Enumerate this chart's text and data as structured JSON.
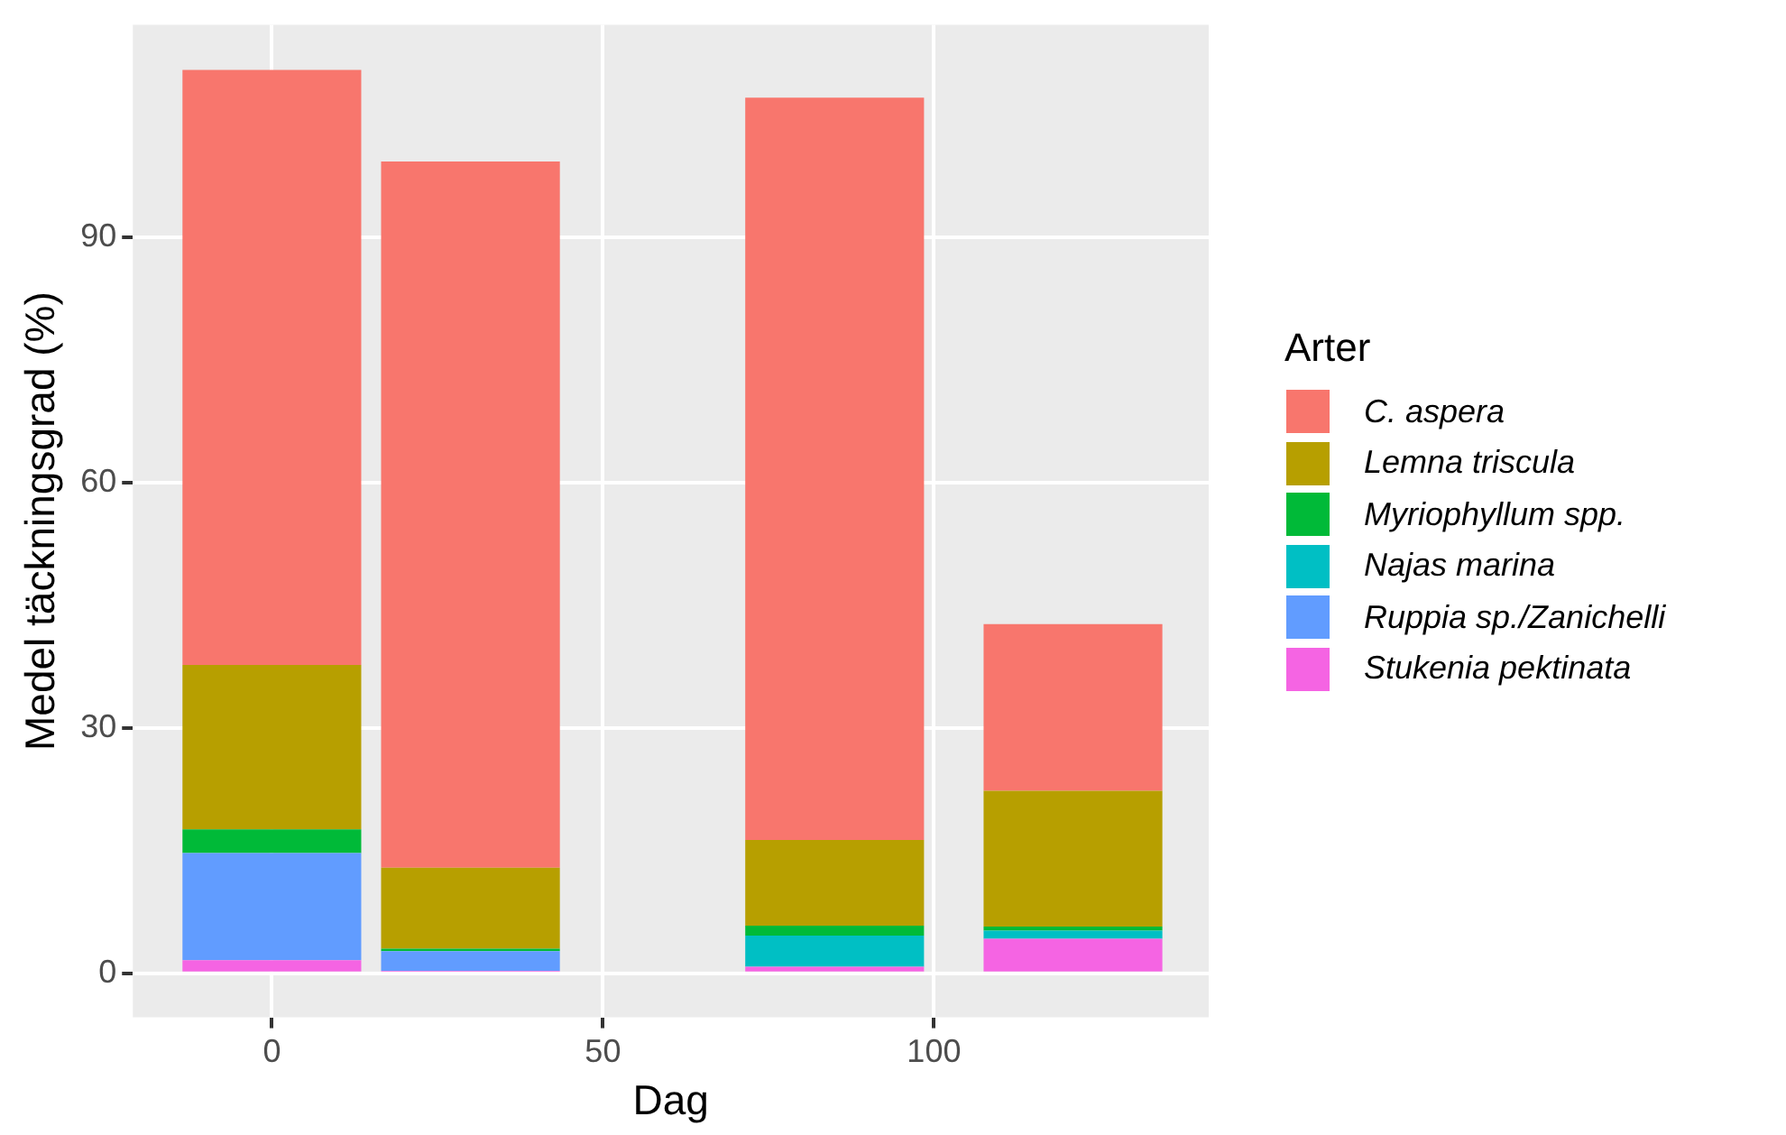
{
  "chart_data": {
    "type": "bar",
    "stacked": true,
    "xlabel": "Dag",
    "ylabel": "Medel täckningsgrad (%)",
    "legend_title": "Arter",
    "legend": "right",
    "grid": true,
    "x": [
      0,
      30,
      85,
      121
    ],
    "xlim": [
      -21,
      141.5
    ],
    "xticks": [
      0,
      50,
      100
    ],
    "ylim": [
      -5.4,
      116
    ],
    "yticks": [
      0,
      30,
      60,
      90
    ],
    "series": [
      {
        "name": "Stukenia pektinata",
        "color": "#f564e3",
        "values": [
          1.6,
          0.3,
          0.8,
          4.2
        ]
      },
      {
        "name": "Ruppia sp./Zanichelli",
        "color": "#619cff",
        "values": [
          13.1,
          2.4,
          0,
          0
        ]
      },
      {
        "name": "Najas marina",
        "color": "#00bfc4",
        "values": [
          0,
          0,
          3.8,
          1.0
        ]
      },
      {
        "name": "Myriophyllum spp.",
        "color": "#00ba38",
        "values": [
          2.9,
          0.3,
          1.2,
          0.5
        ]
      },
      {
        "name": "Lemna triscula",
        "color": "#b79f00",
        "values": [
          20.1,
          9.9,
          10.5,
          16.6
        ]
      },
      {
        "name": "C. aspera",
        "color": "#f8766d",
        "values": [
          72.8,
          86.4,
          90.8,
          20.4
        ]
      }
    ]
  }
}
